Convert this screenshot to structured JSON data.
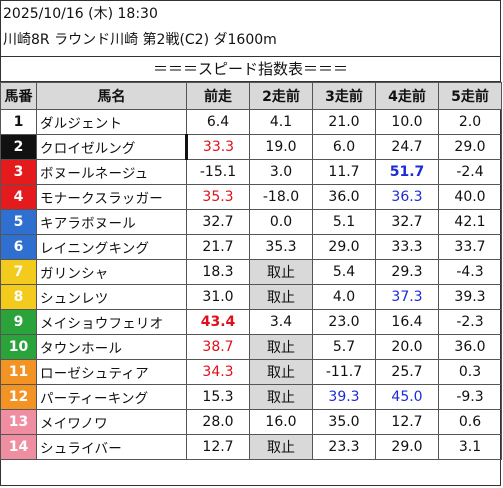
{
  "header": {
    "datetime": "2025/10/16 (木) 18:30",
    "race": "川崎8R ラウンド川崎 第2戦(C2) ダ1600m"
  },
  "caption": "＝＝＝スピード指数表＝＝＝",
  "columns": [
    "馬番",
    "馬名",
    "前走",
    "2走前",
    "3走前",
    "4走前",
    "5走前"
  ],
  "colors": {
    "white_frame": "#ffffff",
    "black_frame": "#111111",
    "red_frame": "#e41a1c",
    "blue_frame": "#2f6fd0",
    "yellow_frame": "#f2cb1d",
    "green_frame": "#29a33a",
    "orange_frame": "#f39323",
    "pink_frame": "#ee8ea0",
    "highlight_red": "#e0101a",
    "highlight_blue": "#1d2bd6",
    "scratched_bg": "#d9d9d9"
  },
  "rows": [
    {
      "num": "1",
      "frame": "white",
      "name": "ダルジェント",
      "v": [
        "6.4",
        "4.1",
        "21.0",
        "10.0",
        "2.0"
      ],
      "style": [
        "",
        "",
        "",
        "",
        ""
      ]
    },
    {
      "num": "2",
      "frame": "black",
      "name": "クロイゼルング",
      "v": [
        "33.3",
        "19.0",
        "6.0",
        "24.7",
        "29.0"
      ],
      "style": [
        "red",
        "",
        "",
        "",
        ""
      ]
    },
    {
      "num": "3",
      "frame": "red",
      "name": "ボヌールネージュ",
      "v": [
        "-15.1",
        "3.0",
        "11.7",
        "51.7",
        "-2.4"
      ],
      "style": [
        "",
        "",
        "",
        "blue bold",
        ""
      ]
    },
    {
      "num": "4",
      "frame": "red",
      "name": "モナークスラッガー",
      "v": [
        "35.3",
        "-18.0",
        "36.0",
        "36.3",
        "40.0"
      ],
      "style": [
        "red",
        "",
        "",
        "blue",
        ""
      ]
    },
    {
      "num": "5",
      "frame": "blue",
      "name": "キアラボヌール",
      "v": [
        "32.7",
        "0.0",
        "5.1",
        "32.7",
        "42.1"
      ],
      "style": [
        "",
        "",
        "",
        "",
        ""
      ]
    },
    {
      "num": "6",
      "frame": "blue",
      "name": "レイニングキング",
      "v": [
        "21.7",
        "35.3",
        "29.0",
        "33.3",
        "33.7"
      ],
      "style": [
        "",
        "",
        "",
        "",
        ""
      ]
    },
    {
      "num": "7",
      "frame": "yellow",
      "name": "ガリンシャ",
      "v": [
        "18.3",
        "取止",
        "5.4",
        "29.3",
        "-4.3"
      ],
      "style": [
        "",
        "scratched",
        "",
        "",
        ""
      ]
    },
    {
      "num": "8",
      "frame": "yellow",
      "name": "シュンレツ",
      "v": [
        "31.0",
        "取止",
        "4.0",
        "37.3",
        "39.3"
      ],
      "style": [
        "",
        "scratched",
        "",
        "blue",
        ""
      ]
    },
    {
      "num": "9",
      "frame": "green",
      "name": "メイショウフェリオ",
      "v": [
        "43.4",
        "3.4",
        "23.0",
        "16.4",
        "-2.3"
      ],
      "style": [
        "red bold",
        "",
        "",
        "",
        ""
      ]
    },
    {
      "num": "10",
      "frame": "green",
      "name": "タウンホール",
      "v": [
        "38.7",
        "取止",
        "5.7",
        "20.0",
        "36.0"
      ],
      "style": [
        "red",
        "scratched",
        "",
        "",
        ""
      ]
    },
    {
      "num": "11",
      "frame": "orange",
      "name": "ローゼシュティア",
      "v": [
        "34.3",
        "取止",
        "-11.7",
        "25.7",
        "0.3"
      ],
      "style": [
        "red",
        "scratched",
        "",
        "",
        ""
      ]
    },
    {
      "num": "12",
      "frame": "orange",
      "name": "パーティーキング",
      "v": [
        "15.3",
        "取止",
        "39.3",
        "45.0",
        "-9.3"
      ],
      "style": [
        "",
        "scratched",
        "blue",
        "blue",
        ""
      ]
    },
    {
      "num": "13",
      "frame": "pink",
      "name": "メイワノワ",
      "v": [
        "28.0",
        "16.0",
        "35.0",
        "12.7",
        "0.6"
      ],
      "style": [
        "",
        "",
        "",
        "",
        ""
      ]
    },
    {
      "num": "14",
      "frame": "pink",
      "name": "シュライバー",
      "v": [
        "12.7",
        "取止",
        "23.3",
        "29.0",
        "3.1"
      ],
      "style": [
        "",
        "scratched",
        "",
        "",
        ""
      ]
    }
  ]
}
